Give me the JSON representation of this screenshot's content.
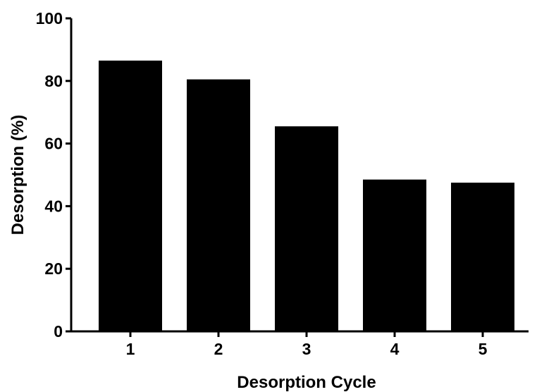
{
  "chart_data": {
    "type": "bar",
    "title": "",
    "xlabel": "Desorption Cycle",
    "ylabel": "Desorption (%)",
    "categories": [
      "1",
      "2",
      "3",
      "4",
      "5"
    ],
    "values": [
      86.5,
      80.5,
      65.5,
      48.5,
      47.5
    ],
    "ylim": [
      0,
      100
    ],
    "yticks": [
      0,
      20,
      40,
      60,
      80,
      100
    ],
    "bar_color": "#000000",
    "grid": false,
    "legend": "none"
  }
}
